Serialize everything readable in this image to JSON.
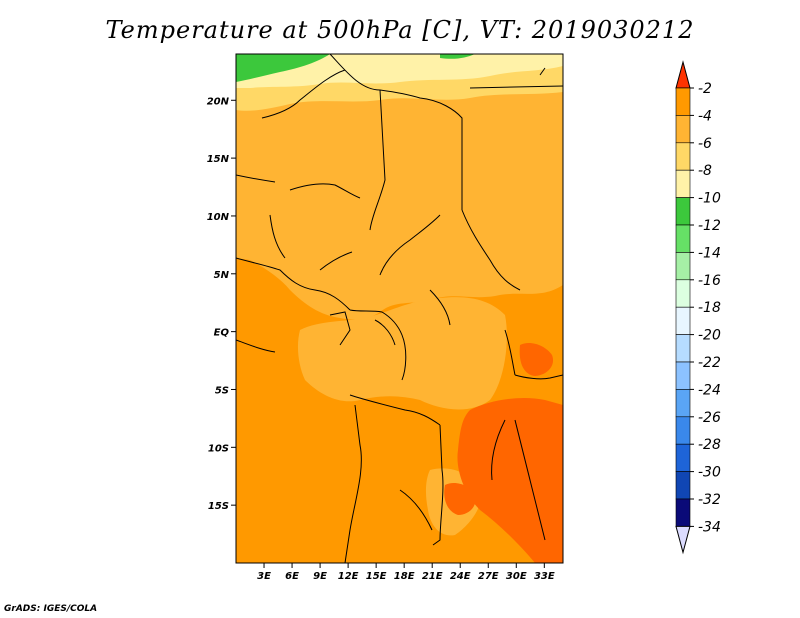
{
  "title": "Temperature at 500hPa [C], VT: 2019030212",
  "credit": "GrADS: IGES/COLA",
  "map": {
    "lon_range": [
      0,
      35
    ],
    "lat_range": [
      -20,
      24
    ],
    "lat_ticks": [
      {
        "value": 20,
        "label": "20N"
      },
      {
        "value": 15,
        "label": "15N"
      },
      {
        "value": 10,
        "label": "10N"
      },
      {
        "value": 5,
        "label": "5N"
      },
      {
        "value": 0,
        "label": "EQ"
      },
      {
        "value": -5,
        "label": "5S"
      },
      {
        "value": -10,
        "label": "10S"
      },
      {
        "value": -15,
        "label": "15S"
      }
    ],
    "lon_ticks": [
      {
        "value": 3,
        "label": "3E"
      },
      {
        "value": 6,
        "label": "6E"
      },
      {
        "value": 9,
        "label": "9E"
      },
      {
        "value": 12,
        "label": "12E"
      },
      {
        "value": 15,
        "label": "15E"
      },
      {
        "value": 18,
        "label": "18E"
      },
      {
        "value": 21,
        "label": "21E"
      },
      {
        "value": 24,
        "label": "24E"
      },
      {
        "value": 27,
        "label": "27E"
      },
      {
        "value": 30,
        "label": "30E"
      },
      {
        "value": 33,
        "label": "33E"
      }
    ]
  },
  "colorbar": {
    "levels": [
      {
        "label": "-2",
        "color": "#ff6600"
      },
      {
        "label": "-4",
        "color": "#ff9900"
      },
      {
        "label": "-6",
        "color": "#ffb433"
      },
      {
        "label": "-8",
        "color": "#ffd866"
      },
      {
        "label": "-10",
        "color": "#fff2a8"
      },
      {
        "label": "-12",
        "color": "#3cc83c"
      },
      {
        "label": "-14",
        "color": "#66e066"
      },
      {
        "label": "-16",
        "color": "#a6f0a6"
      },
      {
        "label": "-18",
        "color": "#dcffe0"
      },
      {
        "label": "-20",
        "color": "#e8f6ff"
      },
      {
        "label": "-22",
        "color": "#b6dcff"
      },
      {
        "label": "-24",
        "color": "#8cc2ff"
      },
      {
        "label": "-26",
        "color": "#5aa5f5"
      },
      {
        "label": "-28",
        "color": "#3a88eb"
      },
      {
        "label": "-30",
        "color": "#1e64d8"
      },
      {
        "label": "-32",
        "color": "#1046b4"
      },
      {
        "label": "-34",
        "color": "#0a0a78"
      }
    ],
    "top_color": "#ff3300",
    "bottom_color": "#dcdcff"
  }
}
